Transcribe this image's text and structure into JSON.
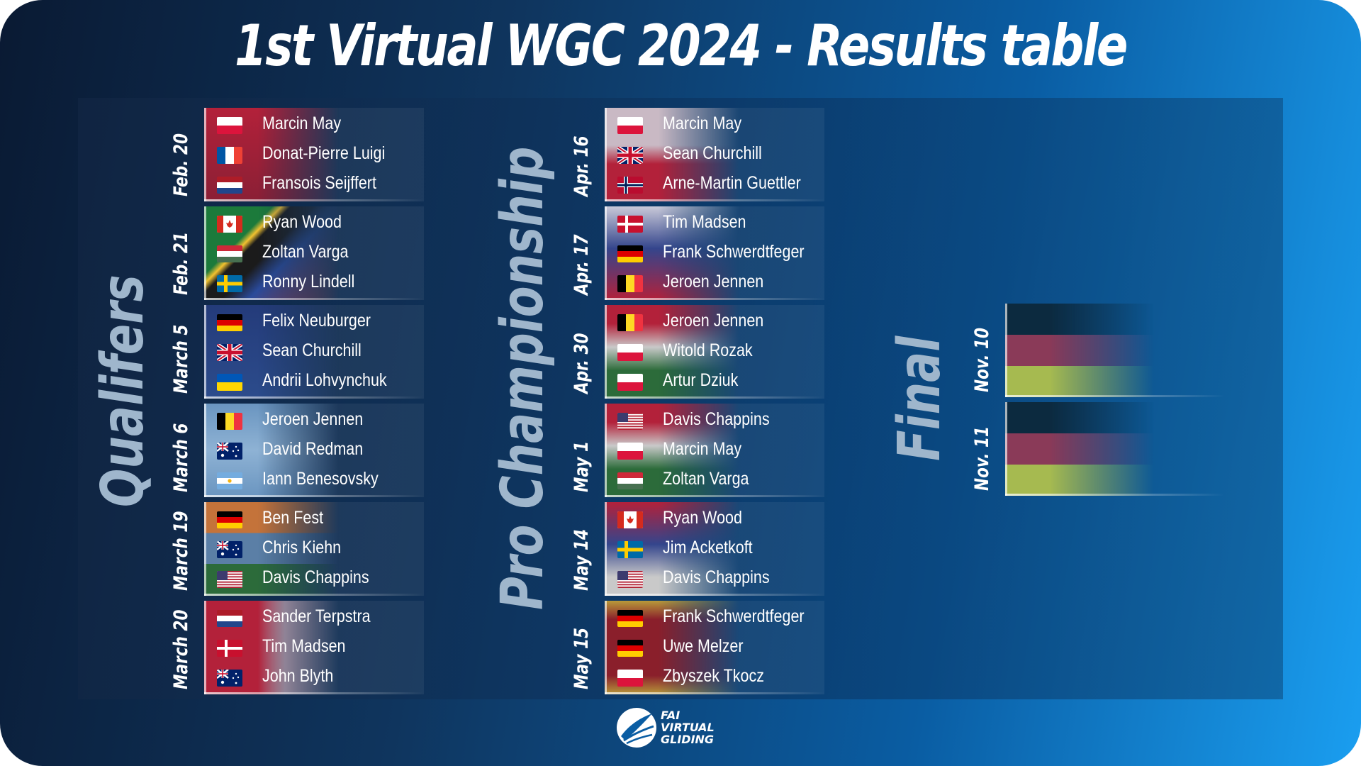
{
  "title": "1st Virtual WGC 2024 - Results table",
  "colors": {
    "accent": "#1a9ef0",
    "background_dark": "#0a1a33",
    "section_label": "#9fb6cc"
  },
  "sections": {
    "qualifiers": {
      "label": "Qualifers",
      "rounds": [
        {
          "date": "Feb. 20",
          "bg": "china",
          "players": [
            {
              "name": "Marcin May",
              "flag": "poland"
            },
            {
              "name": "Donat-Pierre Luigi",
              "flag": "france"
            },
            {
              "name": "Fransois Seijffert",
              "flag": "netherlands"
            }
          ]
        },
        {
          "date": "Feb. 21",
          "bg": "south-africa",
          "players": [
            {
              "name": "Ryan Wood",
              "flag": "canada"
            },
            {
              "name": "Zoltan Varga",
              "flag": "hungary"
            },
            {
              "name": "Ronny Lindell",
              "flag": "sweden"
            }
          ]
        },
        {
          "date": "March 5",
          "bg": "uk",
          "players": [
            {
              "name": "Felix Neuburger",
              "flag": "germany"
            },
            {
              "name": "Sean Churchill",
              "flag": "uk"
            },
            {
              "name": "Andrii Lohvynchuk",
              "flag": "ukraine"
            }
          ]
        },
        {
          "date": "March 6",
          "bg": "argentina",
          "players": [
            {
              "name": "Jeroen Jennen",
              "flag": "belgium"
            },
            {
              "name": "David Redman",
              "flag": "australia"
            },
            {
              "name": "Iann Benesovsky",
              "flag": "argentina"
            }
          ]
        },
        {
          "date": "March 19",
          "bg": "india",
          "players": [
            {
              "name": "Ben Fest",
              "flag": "germany"
            },
            {
              "name": "Chris Kiehn",
              "flag": "australia"
            },
            {
              "name": "Davis Chappins",
              "flag": "usa"
            }
          ]
        },
        {
          "date": "March 20",
          "bg": "canada",
          "players": [
            {
              "name": "Sander Terpstra",
              "flag": "netherlands"
            },
            {
              "name": "Tim Madsen",
              "flag": "denmark"
            },
            {
              "name": "John Blyth",
              "flag": "australia"
            }
          ]
        }
      ]
    },
    "pro": {
      "label": "Pro Championship",
      "rounds": [
        {
          "date": "Apr. 16",
          "bg": "poland",
          "players": [
            {
              "name": "Marcin May",
              "flag": "poland"
            },
            {
              "name": "Sean Churchill",
              "flag": "uk"
            },
            {
              "name": "Arne-Martin Guettler",
              "flag": "norway"
            }
          ]
        },
        {
          "date": "Apr. 17",
          "bg": "slovakia",
          "players": [
            {
              "name": "Tim Madsen",
              "flag": "denmark"
            },
            {
              "name": "Frank Schwerdtfeger",
              "flag": "germany"
            },
            {
              "name": "Jeroen Jennen",
              "flag": "belgium"
            }
          ]
        },
        {
          "date": "Apr. 30",
          "bg": "hungary",
          "players": [
            {
              "name": "Jeroen Jennen",
              "flag": "belgium"
            },
            {
              "name": "Witold Rozak",
              "flag": "poland"
            },
            {
              "name": "Artur Dziuk",
              "flag": "poland"
            }
          ]
        },
        {
          "date": "May 1",
          "bg": "hungary",
          "players": [
            {
              "name": "Davis Chappins",
              "flag": "usa"
            },
            {
              "name": "Marcin May",
              "flag": "poland"
            },
            {
              "name": "Zoltan Varga",
              "flag": "hungary"
            }
          ]
        },
        {
          "date": "May 14",
          "bg": "serbia",
          "players": [
            {
              "name": "Ryan Wood",
              "flag": "canada"
            },
            {
              "name": "Jim Acketkoft",
              "flag": "sweden"
            },
            {
              "name": "Davis Chappins",
              "flag": "usa"
            }
          ]
        },
        {
          "date": "May 15",
          "bg": "montenegro",
          "players": [
            {
              "name": "Frank Schwerdtfeger",
              "flag": "germany"
            },
            {
              "name": "Uwe Melzer",
              "flag": "germany"
            },
            {
              "name": "Zbyszek Tkocz",
              "flag": "poland"
            }
          ]
        }
      ]
    },
    "final": {
      "label": "Final",
      "rounds": [
        {
          "date": "Nov. 10",
          "bg": "germany"
        },
        {
          "date": "Nov. 11",
          "bg": "germany"
        }
      ]
    }
  },
  "logo": {
    "line1": "FAI",
    "line2": "VIRTUAL",
    "line3": "GLIDING",
    "icon": "glider-wing-icon"
  }
}
